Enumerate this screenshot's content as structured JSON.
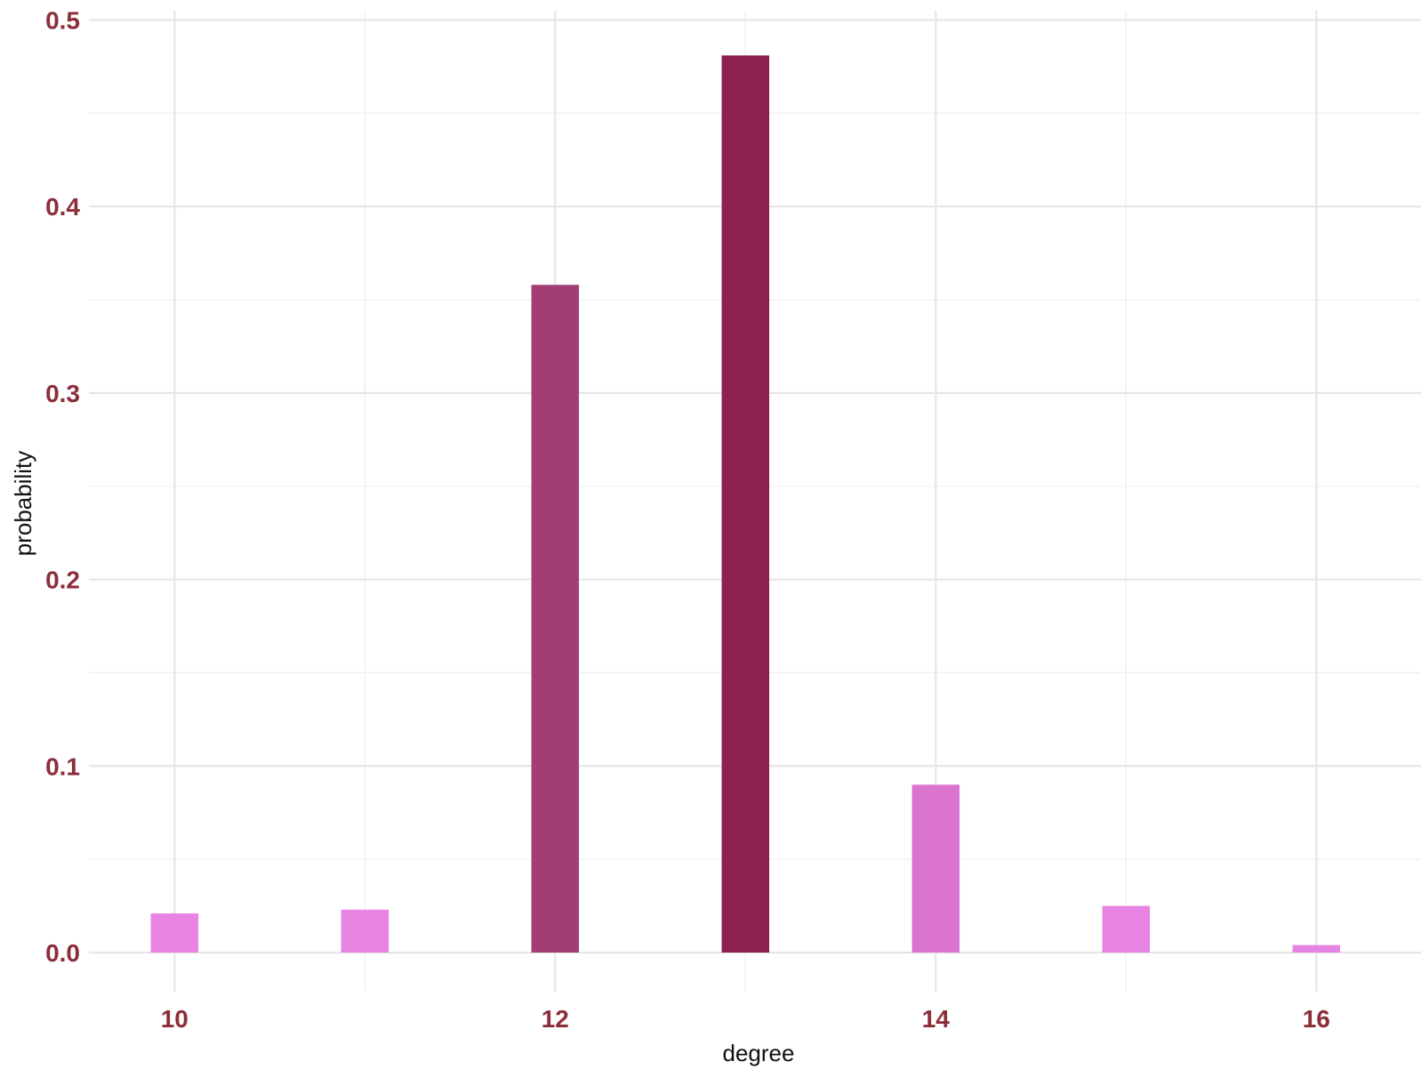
{
  "chart_data": {
    "type": "bar",
    "xlabel": "degree",
    "ylabel": "probability",
    "x": [
      10,
      11,
      12,
      13,
      14,
      15,
      16
    ],
    "values": [
      0.021,
      0.023,
      0.358,
      0.481,
      0.09,
      0.025,
      0.004
    ],
    "bar_colors": [
      "#e683e3",
      "#e683e3",
      "#a23e74",
      "#8b2252",
      "#da74cd",
      "#e683e3",
      "#e683e3"
    ],
    "xlim": [
      9.55,
      16.55
    ],
    "ylim": [
      -0.021,
      0.505
    ],
    "x_ticks": [
      10,
      12,
      14,
      16
    ],
    "x_tick_labels": [
      "10",
      "12",
      "14",
      "16"
    ],
    "x_minor_ticks": [
      11,
      13,
      15
    ],
    "y_ticks": [
      0.0,
      0.1,
      0.2,
      0.3,
      0.4,
      0.5
    ],
    "y_tick_labels": [
      "0.0",
      "0.1",
      "0.2",
      "0.3",
      "0.4",
      "0.5"
    ],
    "y_minor_ticks": [
      0.05,
      0.15,
      0.25,
      0.35,
      0.45
    ],
    "bar_width": 0.25,
    "grid": true,
    "legend": "none",
    "tick_label_color": "#8b2e3a"
  }
}
